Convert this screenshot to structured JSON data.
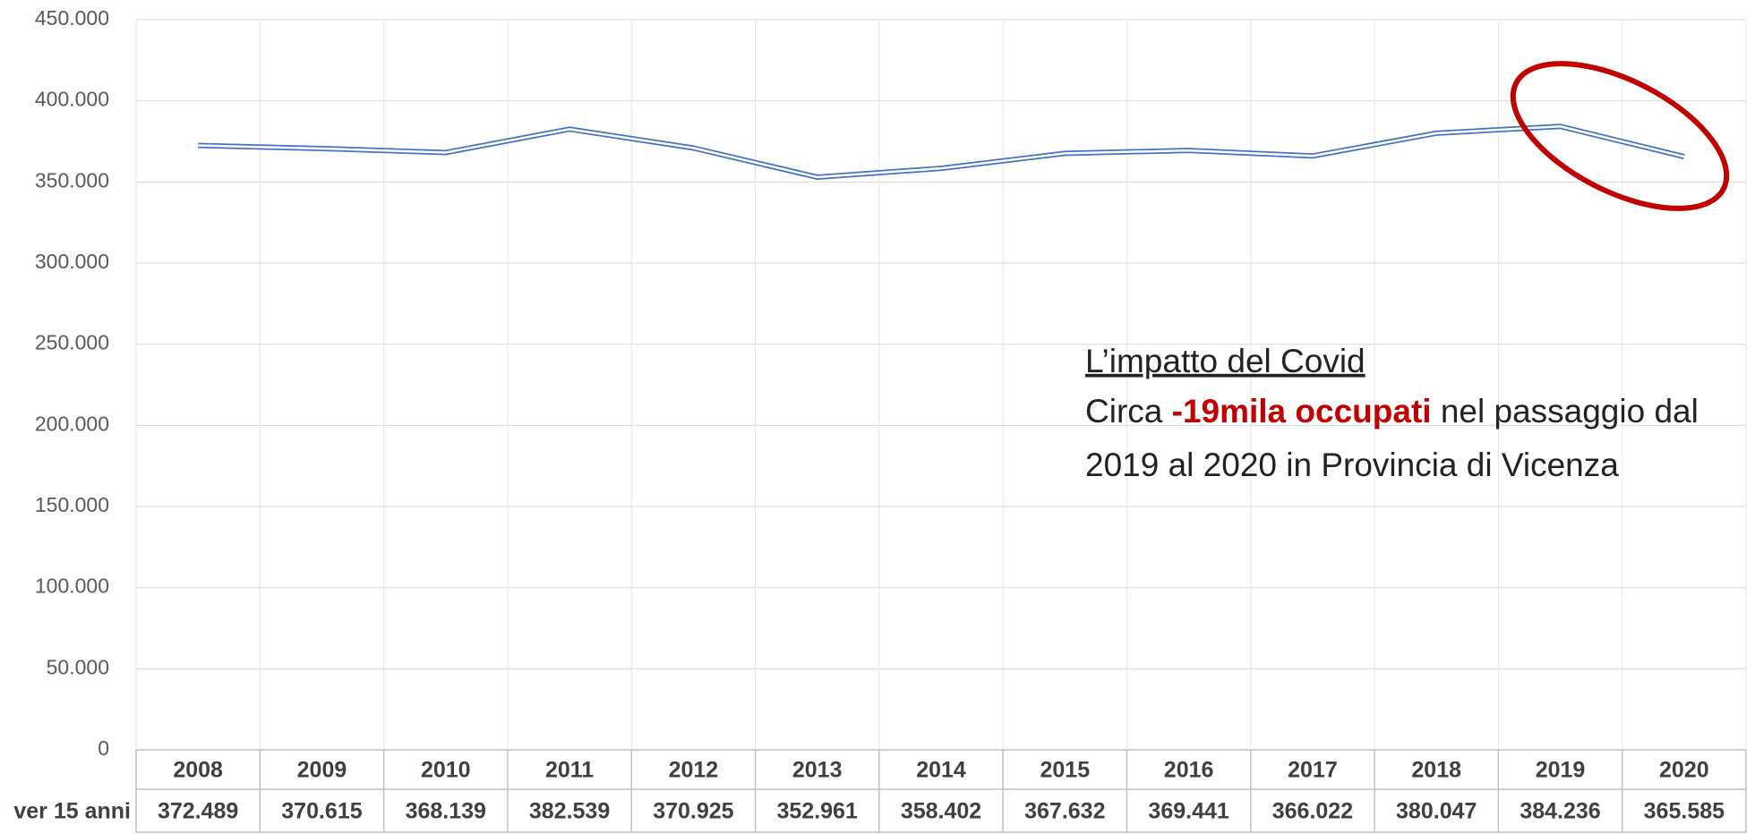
{
  "chart_data": {
    "type": "line",
    "categories": [
      "2008",
      "2009",
      "2010",
      "2011",
      "2012",
      "2013",
      "2014",
      "2015",
      "2016",
      "2017",
      "2018",
      "2019",
      "2020"
    ],
    "series": [
      {
        "name": "ver 15 anni",
        "color": "#4472c4",
        "values": [
          372489,
          370615,
          368139,
          382539,
          370925,
          352961,
          358402,
          367632,
          369441,
          366022,
          380047,
          384236,
          365585
        ],
        "value_labels": [
          "372.489",
          "370.615",
          "368.139",
          "382.539",
          "370.925",
          "352.961",
          "358.402",
          "367.632",
          "369.441",
          "366.022",
          "380.047",
          "384.236",
          "365.585"
        ]
      }
    ],
    "ylim": [
      0,
      450000
    ],
    "yticks": [
      0,
      {
        "value": 50000,
        "label": "50.000"
      },
      {
        "value": 100000,
        "label": "100.000"
      },
      {
        "value": 150000,
        "label": "150.000"
      },
      {
        "value": 200000,
        "label": "200.000"
      },
      {
        "value": 250000,
        "label": "250.000"
      },
      {
        "value": 300000,
        "label": "300.000"
      },
      {
        "value": 350000,
        "label": "350.000"
      },
      {
        "value": 400000,
        "label": "400.000"
      },
      {
        "value": 450000,
        "label": "450.000"
      }
    ],
    "grid": true,
    "annotation": {
      "title": "L’impatto del Covid",
      "line1_start": "Circa ",
      "line1_highlight": "-19mila occupati",
      "line1_end": " nel passaggio dal",
      "line2": "2019 al 2020 in Provincia di Vicenza",
      "highlight_color": "#c00000"
    }
  }
}
